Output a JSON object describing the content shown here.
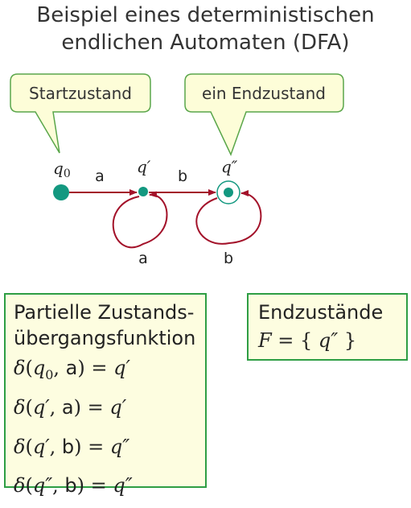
{
  "title": {
    "line1": "Beispiel eines deterministischen",
    "line2": "endlichen Automaten (DFA)"
  },
  "callouts": {
    "start": "Startzustand",
    "end": "ein Endzustand"
  },
  "states": {
    "q0": "q",
    "q0_sub": "0",
    "q1": "q′",
    "q2": "q″"
  },
  "edges": {
    "q0_to_q1": "a",
    "q1_to_q2": "b",
    "loop_q1": "a",
    "loop_q2": "b"
  },
  "transition_box": {
    "heading1": "Partielle Zustands-",
    "heading2": "übergangsfunktion",
    "rows": [
      {
        "state": "q",
        "sub": "0",
        "symbol": "a",
        "result": "q′"
      },
      {
        "state": "q′",
        "sub": "",
        "symbol": "a",
        "result": "q′"
      },
      {
        "state": "q′",
        "sub": "",
        "symbol": "b",
        "result": "q″"
      },
      {
        "state": "q″",
        "sub": "",
        "symbol": "b",
        "result": "q″"
      }
    ]
  },
  "final_box": {
    "heading": "Endzustände",
    "formula_lhs": "F",
    "formula_rhs": "q″"
  },
  "colors": {
    "state_fill": "#139880",
    "arrow": "#a3122a",
    "callout_fill": "#fdfdd8",
    "callout_stroke": "#5aa64a",
    "box_border": "#2e9e44"
  }
}
